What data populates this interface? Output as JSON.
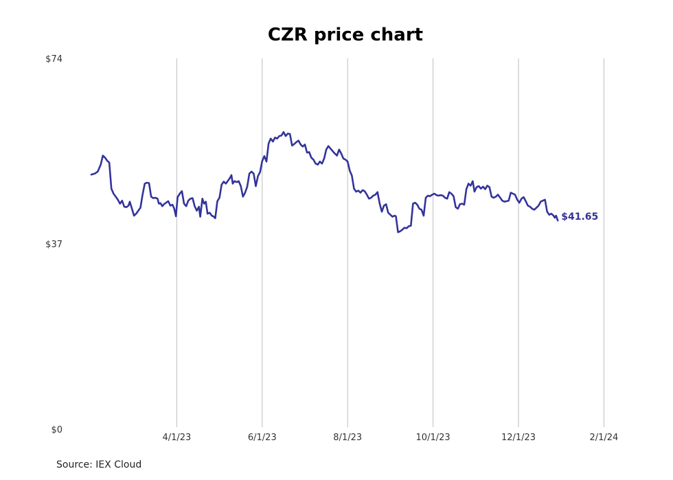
{
  "chart_data": {
    "type": "line",
    "title": "CZR price chart",
    "xlabel": "",
    "ylabel": "",
    "ylim": [
      0,
      74
    ],
    "y_ticks": [
      {
        "value": 74,
        "label": "$74"
      },
      {
        "value": 37,
        "label": "$37"
      },
      {
        "value": 0,
        "label": "$0"
      }
    ],
    "x_ticks": [
      "4/1/23",
      "6/1/23",
      "8/1/23",
      "10/1/23",
      "12/1/23",
      "2/1/24"
    ],
    "x_range_months": [
      0,
      13
    ],
    "x_tick_months": [
      2.0,
      4.0,
      6.0,
      8.0,
      10.0,
      12.0
    ],
    "grid": "vertical",
    "series": [
      {
        "name": "CZR",
        "color": "#33339a",
        "end_label": "$41.65",
        "points": [
          [
            0.0,
            50.8
          ],
          [
            0.08,
            51.0
          ],
          [
            0.15,
            51.4
          ],
          [
            0.22,
            52.8
          ],
          [
            0.27,
            54.6
          ],
          [
            0.32,
            54.2
          ],
          [
            0.37,
            53.6
          ],
          [
            0.42,
            53.2
          ],
          [
            0.47,
            48.0
          ],
          [
            0.52,
            47.0
          ],
          [
            0.57,
            46.4
          ],
          [
            0.62,
            45.8
          ],
          [
            0.67,
            45.0
          ],
          [
            0.72,
            45.6
          ],
          [
            0.77,
            44.4
          ],
          [
            0.82,
            44.3
          ],
          [
            0.87,
            44.6
          ],
          [
            0.9,
            45.4
          ],
          [
            0.95,
            44.0
          ],
          [
            1.0,
            42.6
          ],
          [
            1.05,
            43.0
          ],
          [
            1.1,
            43.6
          ],
          [
            1.15,
            44.2
          ],
          [
            1.2,
            46.8
          ],
          [
            1.25,
            49.0
          ],
          [
            1.3,
            49.2
          ],
          [
            1.35,
            49.1
          ],
          [
            1.4,
            46.4
          ],
          [
            1.45,
            46.1
          ],
          [
            1.5,
            46.2
          ],
          [
            1.55,
            46.0
          ],
          [
            1.58,
            45.0
          ],
          [
            1.62,
            45.1
          ],
          [
            1.66,
            44.5
          ],
          [
            1.7,
            44.9
          ],
          [
            1.75,
            45.2
          ],
          [
            1.8,
            45.5
          ],
          [
            1.85,
            44.6
          ],
          [
            1.9,
            44.8
          ],
          [
            1.94,
            44.0
          ],
          [
            1.98,
            42.5
          ],
          [
            2.02,
            46.3
          ],
          [
            2.07,
            47.0
          ],
          [
            2.12,
            47.5
          ],
          [
            2.17,
            45.0
          ],
          [
            2.22,
            44.5
          ],
          [
            2.27,
            45.6
          ],
          [
            2.32,
            46.0
          ],
          [
            2.37,
            46.1
          ],
          [
            2.42,
            44.5
          ],
          [
            2.47,
            43.6
          ],
          [
            2.52,
            44.4
          ],
          [
            2.55,
            42.4
          ],
          [
            2.6,
            46.0
          ],
          [
            2.64,
            45.0
          ],
          [
            2.68,
            45.4
          ],
          [
            2.72,
            43.0
          ],
          [
            2.77,
            43.2
          ],
          [
            2.82,
            42.6
          ],
          [
            2.87,
            42.4
          ],
          [
            2.9,
            42.1
          ],
          [
            2.95,
            45.5
          ],
          [
            3.0,
            46.2
          ],
          [
            3.05,
            48.8
          ],
          [
            3.1,
            49.4
          ],
          [
            3.15,
            49.0
          ],
          [
            3.2,
            49.6
          ],
          [
            3.25,
            50.2
          ],
          [
            3.28,
            50.7
          ],
          [
            3.31,
            49.0
          ],
          [
            3.35,
            49.5
          ],
          [
            3.4,
            49.3
          ],
          [
            3.45,
            49.5
          ],
          [
            3.5,
            48.5
          ],
          [
            3.55,
            46.4
          ],
          [
            3.6,
            47.2
          ],
          [
            3.65,
            48.4
          ],
          [
            3.7,
            51.0
          ],
          [
            3.75,
            51.4
          ],
          [
            3.8,
            51.0
          ],
          [
            3.85,
            48.5
          ],
          [
            3.9,
            50.5
          ],
          [
            3.95,
            51.3
          ],
          [
            4.0,
            53.5
          ],
          [
            4.05,
            54.5
          ],
          [
            4.1,
            53.4
          ],
          [
            4.15,
            57.0
          ],
          [
            4.2,
            58.0
          ],
          [
            4.25,
            57.4
          ],
          [
            4.3,
            58.2
          ],
          [
            4.35,
            58.0
          ],
          [
            4.4,
            58.5
          ],
          [
            4.45,
            58.6
          ],
          [
            4.5,
            59.3
          ],
          [
            4.55,
            58.5
          ],
          [
            4.6,
            59.0
          ],
          [
            4.65,
            58.9
          ],
          [
            4.7,
            56.6
          ],
          [
            4.75,
            56.9
          ],
          [
            4.8,
            57.3
          ],
          [
            4.85,
            57.6
          ],
          [
            4.9,
            56.8
          ],
          [
            4.95,
            56.4
          ],
          [
            5.0,
            56.8
          ],
          [
            5.05,
            55.2
          ],
          [
            5.1,
            55.3
          ],
          [
            5.15,
            54.2
          ],
          [
            5.2,
            53.8
          ],
          [
            5.25,
            53.0
          ],
          [
            5.3,
            52.8
          ],
          [
            5.35,
            53.4
          ],
          [
            5.4,
            53.0
          ],
          [
            5.45,
            54.0
          ],
          [
            5.5,
            55.8
          ],
          [
            5.55,
            56.5
          ],
          [
            5.6,
            56.0
          ],
          [
            5.65,
            55.5
          ],
          [
            5.7,
            55.0
          ],
          [
            5.75,
            54.6
          ],
          [
            5.8,
            55.8
          ],
          [
            5.85,
            55.0
          ],
          [
            5.9,
            54.0
          ],
          [
            5.95,
            53.8
          ],
          [
            6.0,
            53.4
          ],
          [
            6.05,
            51.6
          ],
          [
            6.1,
            50.6
          ],
          [
            6.15,
            48.0
          ],
          [
            6.2,
            47.4
          ],
          [
            6.25,
            47.6
          ],
          [
            6.3,
            47.2
          ],
          [
            6.35,
            47.7
          ],
          [
            6.4,
            47.5
          ],
          [
            6.45,
            46.8
          ],
          [
            6.5,
            46.0
          ],
          [
            6.55,
            46.2
          ],
          [
            6.6,
            46.6
          ],
          [
            6.65,
            46.8
          ],
          [
            6.7,
            47.3
          ],
          [
            6.75,
            45.0
          ],
          [
            6.8,
            43.4
          ],
          [
            6.85,
            44.6
          ],
          [
            6.9,
            44.9
          ],
          [
            6.95,
            43.2
          ],
          [
            7.0,
            42.8
          ],
          [
            7.05,
            42.4
          ],
          [
            7.1,
            42.6
          ],
          [
            7.13,
            42.5
          ],
          [
            7.18,
            39.3
          ],
          [
            7.23,
            39.5
          ],
          [
            7.28,
            39.8
          ],
          [
            7.33,
            40.2
          ],
          [
            7.38,
            40.1
          ],
          [
            7.43,
            40.5
          ],
          [
            7.48,
            40.6
          ],
          [
            7.53,
            45.0
          ],
          [
            7.58,
            45.2
          ],
          [
            7.63,
            44.8
          ],
          [
            7.68,
            44.0
          ],
          [
            7.73,
            43.8
          ],
          [
            7.78,
            42.6
          ],
          [
            7.83,
            46.2
          ],
          [
            7.88,
            46.6
          ],
          [
            7.93,
            46.5
          ],
          [
            7.98,
            46.8
          ],
          [
            8.03,
            47.0
          ],
          [
            8.08,
            46.7
          ],
          [
            8.13,
            46.6
          ],
          [
            8.18,
            46.7
          ],
          [
            8.23,
            46.6
          ],
          [
            8.28,
            46.2
          ],
          [
            8.33,
            46.0
          ],
          [
            8.38,
            47.3
          ],
          [
            8.43,
            47.0
          ],
          [
            8.48,
            46.5
          ],
          [
            8.53,
            44.3
          ],
          [
            8.58,
            44.0
          ],
          [
            8.63,
            44.9
          ],
          [
            8.68,
            45.0
          ],
          [
            8.73,
            44.8
          ],
          [
            8.78,
            47.9
          ],
          [
            8.83,
            49.0
          ],
          [
            8.88,
            48.6
          ],
          [
            8.93,
            49.5
          ],
          [
            8.97,
            47.4
          ],
          [
            9.02,
            48.3
          ],
          [
            9.07,
            48.5
          ],
          [
            9.12,
            48.0
          ],
          [
            9.17,
            48.4
          ],
          [
            9.22,
            47.9
          ],
          [
            9.27,
            48.6
          ],
          [
            9.32,
            48.3
          ],
          [
            9.37,
            46.4
          ],
          [
            9.42,
            46.2
          ],
          [
            9.47,
            46.4
          ],
          [
            9.52,
            46.8
          ],
          [
            9.57,
            46.2
          ],
          [
            9.62,
            45.6
          ],
          [
            9.67,
            45.4
          ],
          [
            9.72,
            45.5
          ],
          [
            9.77,
            45.6
          ],
          [
            9.82,
            47.2
          ],
          [
            9.87,
            47.0
          ],
          [
            9.92,
            46.8
          ],
          [
            9.97,
            45.8
          ],
          [
            10.02,
            45.2
          ],
          [
            10.07,
            46.0
          ],
          [
            10.12,
            46.3
          ],
          [
            10.17,
            45.5
          ],
          [
            10.22,
            44.6
          ],
          [
            10.27,
            44.4
          ],
          [
            10.32,
            44.0
          ],
          [
            10.37,
            43.8
          ],
          [
            10.42,
            44.2
          ],
          [
            10.47,
            44.6
          ],
          [
            10.52,
            45.4
          ],
          [
            10.57,
            45.6
          ],
          [
            10.62,
            45.8
          ],
          [
            10.67,
            43.4
          ],
          [
            10.72,
            42.8
          ],
          [
            10.77,
            43.0
          ],
          [
            10.82,
            42.6
          ],
          [
            10.85,
            42.2
          ],
          [
            10.88,
            42.6
          ],
          [
            10.92,
            41.65
          ]
        ]
      }
    ]
  },
  "source": "Source: IEX Cloud"
}
